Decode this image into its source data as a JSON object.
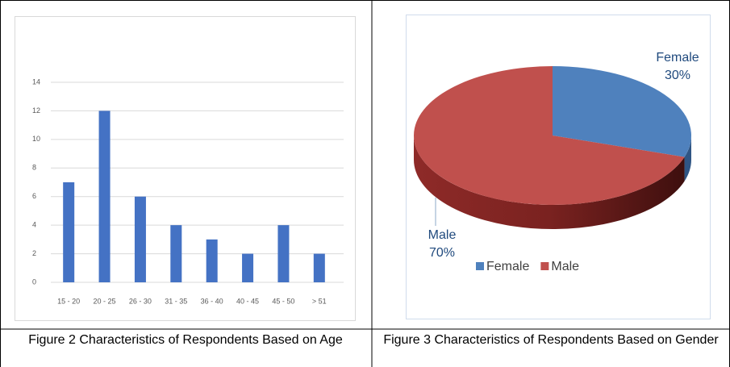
{
  "chart_data": [
    {
      "type": "bar",
      "categories": [
        "15 - 20",
        "20 - 25",
        "26 - 30",
        "31 - 35",
        "36 - 40",
        "40 - 45",
        "45 - 50",
        "> 51"
      ],
      "values": [
        7,
        12,
        6,
        4,
        3,
        2,
        4,
        2
      ],
      "color": "#4472c4",
      "ylim": [
        0,
        14
      ],
      "yticks": [
        0,
        2,
        4,
        6,
        8,
        10,
        12,
        14
      ],
      "grid": true
    },
    {
      "type": "pie",
      "categories": [
        "Female",
        "Male"
      ],
      "values": [
        30,
        70
      ],
      "value_labels": [
        "30%",
        "70%"
      ],
      "colors": [
        "#4f81bd",
        "#c0504d"
      ],
      "legend": "bottom"
    }
  ],
  "captions": [
    "Figure 2 Characteristics of Respondents Based on Age",
    "Figure 3 Characteristics of Respondents Based on Gender"
  ]
}
